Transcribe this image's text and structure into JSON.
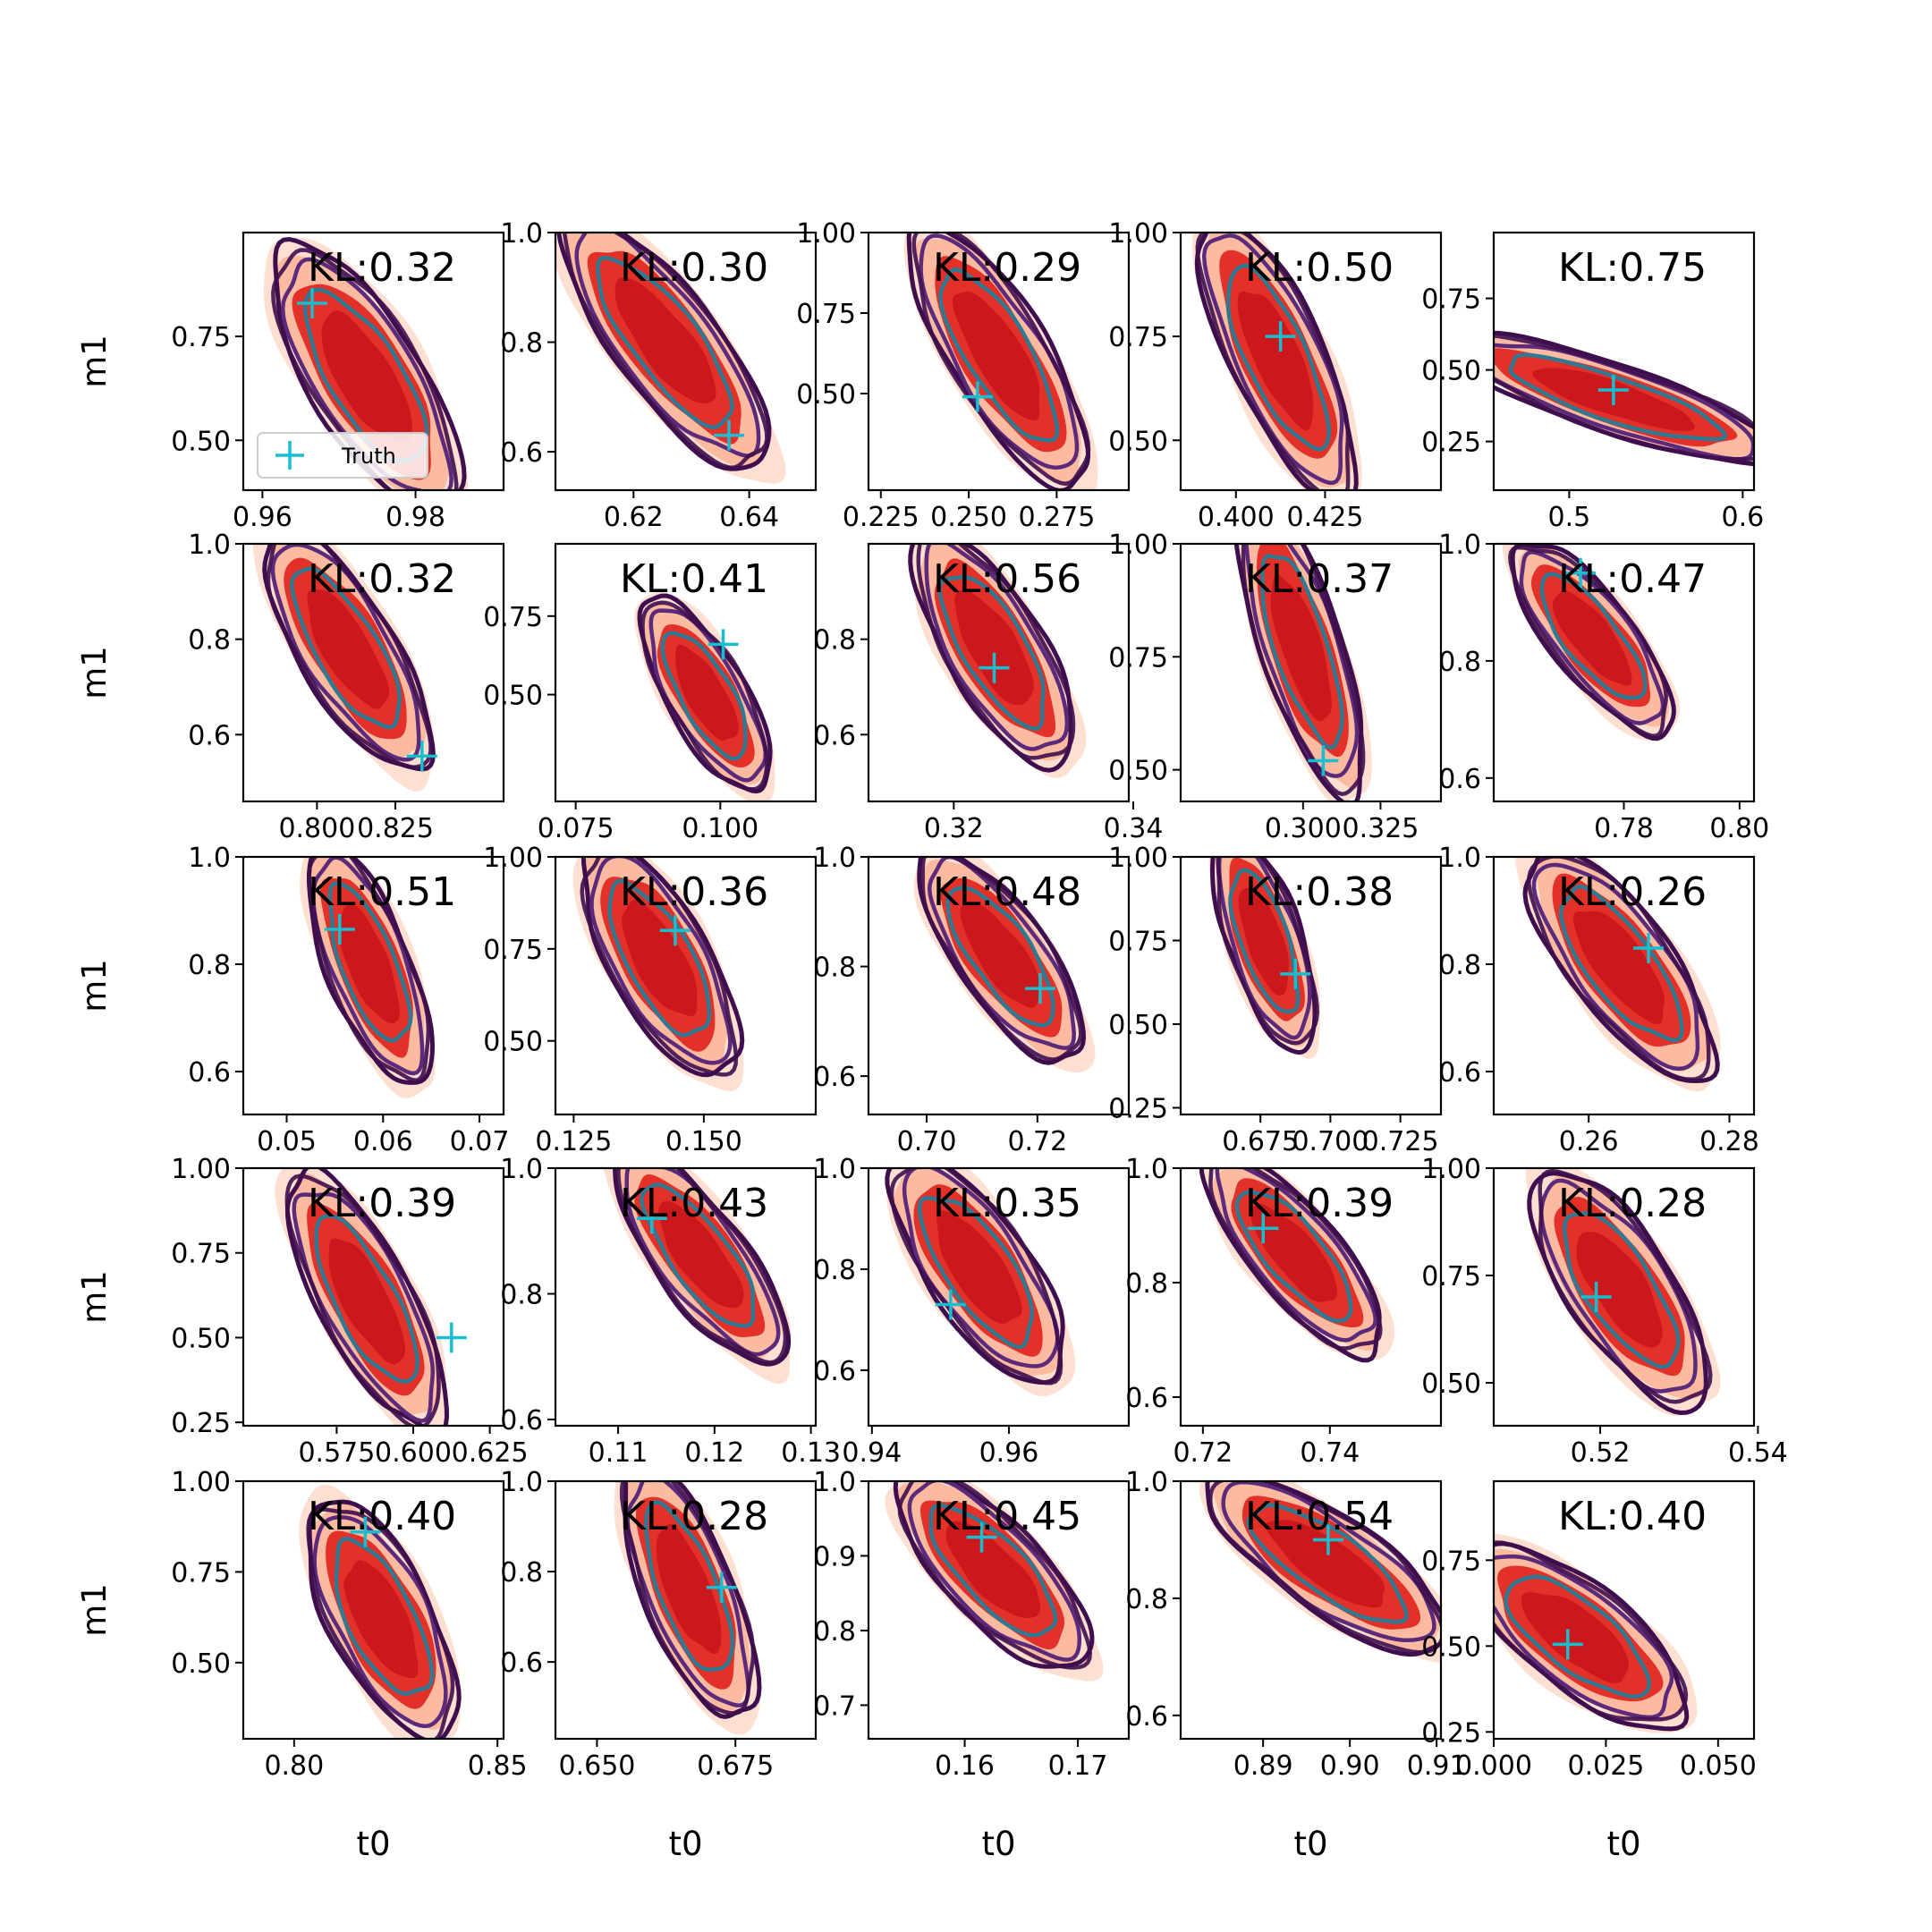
{
  "chart_data": {
    "type": "contour-grid",
    "xlabel": "t0",
    "ylabel": "m1",
    "legend": {
      "label": "Truth",
      "placement": "lower-left",
      "panel": 0
    },
    "colors": {
      "fill_outer": "#fde0d2",
      "fill_mid": "#fcbba1",
      "fill_inner": "#e3312a",
      "fill_core": "#cb181d",
      "contour_outer": "#3e0e4e",
      "contour_mid": "#5c2a7a",
      "contour_inner": "#2f7a92",
      "truth": "#17becf"
    },
    "panels": [
      {
        "kl": "KL:0.32",
        "xticks": [
          "0.96",
          "0.98"
        ],
        "xt": [
          0.96,
          0.98
        ],
        "xlim": [
          0.9575,
          0.9915
        ],
        "yticks": [
          "0.75",
          "0.50"
        ],
        "yt": [
          0.75,
          0.5
        ],
        "ylim": [
          0.38,
          1.0
        ],
        "truth": [
          0.9665,
          0.83
        ],
        "cx": 0.9735,
        "cy": 0.65,
        "hw": 0.0082,
        "hh": 0.31,
        "slant": -0.55,
        "vis": [
          1,
          1,
          1,
          1,
          1,
          1,
          1
        ]
      },
      {
        "kl": "KL:0.30",
        "xticks": [
          "0.62",
          "0.64"
        ],
        "xt": [
          0.62,
          0.64
        ],
        "xlim": [
          0.6065,
          0.6515
        ],
        "yticks": [
          "1.0",
          "0.8",
          "0.6"
        ],
        "yt": [
          1.0,
          0.8,
          0.6
        ],
        "ylim": [
          0.53,
          1.0
        ],
        "truth": [
          0.6365,
          0.63
        ],
        "cx": 0.6255,
        "cy": 0.8,
        "hw": 0.0105,
        "hh": 0.23,
        "slant": -0.7,
        "vis": [
          1,
          1,
          1,
          1,
          1,
          1,
          1
        ]
      },
      {
        "kl": "KL:0.29",
        "xticks": [
          "0.225",
          "0.250",
          "0.275"
        ],
        "xt": [
          0.225,
          0.25,
          0.275
        ],
        "xlim": [
          0.2215,
          0.2955
        ],
        "yticks": [
          "1.00",
          "0.75",
          "0.50"
        ],
        "yt": [
          1.0,
          0.75,
          0.5
        ],
        "ylim": [
          0.2,
          1.0
        ],
        "truth": [
          0.2525,
          0.49
        ],
        "cx": 0.2585,
        "cy": 0.62,
        "hw": 0.0155,
        "hh": 0.4,
        "slant": -0.65,
        "vis": [
          1,
          1,
          1,
          1,
          1,
          1,
          1
        ]
      },
      {
        "kl": "KL:0.50",
        "xticks": [
          "0.400",
          "0.425"
        ],
        "xt": [
          0.4,
          0.425
        ],
        "xlim": [
          0.3845,
          0.4575
        ],
        "yticks": [
          "1.00",
          "0.75",
          "0.50"
        ],
        "yt": [
          1.0,
          0.75,
          0.5
        ],
        "ylim": [
          0.38,
          1.0
        ],
        "truth": [
          0.4125,
          0.75
        ],
        "cx": 0.4115,
        "cy": 0.7,
        "hw": 0.014,
        "hh": 0.33,
        "slant": -0.6,
        "vis": [
          1,
          1,
          1,
          1,
          1,
          1,
          1
        ]
      },
      {
        "kl": "KL:0.75",
        "xticks": [
          "0.5",
          "0.6"
        ],
        "xt": [
          0.5,
          0.6
        ],
        "xlim": [
          0.4565,
          0.6065
        ],
        "yticks": [
          "0.75",
          "0.50",
          "0.25"
        ],
        "yt": [
          0.75,
          0.5,
          0.25
        ],
        "ylim": [
          0.08,
          0.98
        ],
        "truth": [
          0.5255,
          0.43
        ],
        "cx": 0.5255,
        "cy": 0.4,
        "hw": 0.052,
        "hh": 0.22,
        "slant": -0.78,
        "vis": [
          0,
          1,
          1,
          1,
          1,
          1,
          1
        ]
      },
      {
        "kl": "KL:0.32",
        "xticks": [
          "0.800",
          "0.825"
        ],
        "xt": [
          0.8,
          0.825
        ],
        "xlim": [
          0.7765,
          0.8595
        ],
        "yticks": [
          "1.0",
          "0.8",
          "0.6"
        ],
        "yt": [
          1.0,
          0.8,
          0.6
        ],
        "ylim": [
          0.46,
          1.0
        ],
        "truth": [
          0.8335,
          0.555
        ],
        "cx": 0.8095,
        "cy": 0.78,
        "hw": 0.017,
        "hh": 0.25,
        "slant": -0.6,
        "vis": [
          1,
          1,
          1,
          1,
          1,
          1,
          1
        ]
      },
      {
        "kl": "KL:0.41",
        "xticks": [
          "0.075",
          "0.100"
        ],
        "xt": [
          0.075,
          0.1
        ],
        "xlim": [
          0.0715,
          0.1165
        ],
        "yticks": [
          "0.75",
          "0.50"
        ],
        "yt": [
          0.75,
          0.5
        ],
        "ylim": [
          0.16,
          0.98
        ],
        "truth": [
          0.1005,
          0.66
        ],
        "cx": 0.0975,
        "cy": 0.5,
        "hw": 0.0075,
        "hh": 0.3,
        "slant": -0.55,
        "vis": [
          1,
          1,
          1,
          1,
          1,
          1,
          1
        ]
      },
      {
        "kl": "KL:0.56",
        "xticks": [
          "0.32",
          "0.34"
        ],
        "xt": [
          0.32,
          0.34
        ],
        "xlim": [
          0.3105,
          0.3395
        ],
        "yticks": [
          "0.8",
          "0.6"
        ],
        "yt": [
          0.8,
          0.6
        ],
        "ylim": [
          0.46,
          1.0
        ],
        "truth": [
          0.3245,
          0.74
        ],
        "cx": 0.3245,
        "cy": 0.78,
        "hw": 0.006,
        "hh": 0.24,
        "slant": -0.55,
        "vis": [
          1,
          1,
          1,
          1,
          1,
          1,
          1
        ]
      },
      {
        "kl": "KL:0.37",
        "xticks": [
          "0.300",
          "0.325"
        ],
        "xt": [
          0.3,
          0.325
        ],
        "xlim": [
          0.2605,
          0.3445
        ],
        "yticks": [
          "1.00",
          "0.75",
          "0.50"
        ],
        "yt": [
          1.0,
          0.75,
          0.5
        ],
        "ylim": [
          0.43,
          1.0
        ],
        "truth": [
          0.3065,
          0.52
        ],
        "cx": 0.2995,
        "cy": 0.77,
        "hw": 0.0135,
        "hh": 0.32,
        "slant": -0.55,
        "vis": [
          1,
          1,
          1,
          1,
          1,
          1,
          1
        ]
      },
      {
        "kl": "KL:0.47",
        "xticks": [
          "0.78",
          "0.80"
        ],
        "xt": [
          0.78,
          0.8
        ],
        "xlim": [
          0.7575,
          0.8025
        ],
        "yticks": [
          "1.0",
          "0.8",
          "0.6"
        ],
        "yt": [
          1.0,
          0.8,
          0.6
        ],
        "ylim": [
          0.56,
          1.0
        ],
        "truth": [
          0.7725,
          0.95
        ],
        "cx": 0.7745,
        "cy": 0.84,
        "hw": 0.0085,
        "hh": 0.16,
        "slant": -0.65,
        "vis": [
          1,
          1,
          1,
          1,
          1,
          1,
          1
        ]
      },
      {
        "kl": "KL:0.51",
        "xticks": [
          "0.05",
          "0.06",
          "0.07"
        ],
        "xt": [
          0.05,
          0.06,
          0.07
        ],
        "xlim": [
          0.0455,
          0.0725
        ],
        "yticks": [
          "1.0",
          "0.8",
          "0.6"
        ],
        "yt": [
          1.0,
          0.8,
          0.6
        ],
        "ylim": [
          0.52,
          1.0
        ],
        "truth": [
          0.0555,
          0.865
        ],
        "cx": 0.0585,
        "cy": 0.8,
        "hw": 0.0045,
        "hh": 0.22,
        "slant": -0.5,
        "vis": [
          1,
          1,
          1,
          1,
          1,
          1,
          1
        ]
      },
      {
        "kl": "KL:0.36",
        "xticks": [
          "0.125",
          "0.150"
        ],
        "xt": [
          0.125,
          0.15
        ],
        "xlim": [
          0.1215,
          0.1715
        ],
        "yticks": [
          "1.00",
          "0.75",
          "0.50"
        ],
        "yt": [
          1.0,
          0.75,
          0.5
        ],
        "ylim": [
          0.3,
          1.0
        ],
        "truth": [
          0.1445,
          0.8
        ],
        "cx": 0.1415,
        "cy": 0.72,
        "hw": 0.0105,
        "hh": 0.31,
        "slant": -0.5,
        "vis": [
          1,
          1,
          1,
          1,
          1,
          1,
          1
        ]
      },
      {
        "kl": "KL:0.48",
        "xticks": [
          "0.70",
          "0.72"
        ],
        "xt": [
          0.7,
          0.72
        ],
        "xlim": [
          0.6895,
          0.7365
        ],
        "yticks": [
          "1.0",
          "0.8",
          "0.6"
        ],
        "yt": [
          1.0,
          0.8,
          0.6
        ],
        "ylim": [
          0.53,
          1.0
        ],
        "truth": [
          0.7205,
          0.76
        ],
        "cx": 0.7135,
        "cy": 0.82,
        "hw": 0.0095,
        "hh": 0.19,
        "slant": -0.6,
        "vis": [
          1,
          1,
          1,
          1,
          1,
          1,
          1
        ]
      },
      {
        "kl": "KL:0.38",
        "xticks": [
          "0.675",
          "0.700",
          "0.725"
        ],
        "xt": [
          0.675,
          0.7,
          0.725
        ],
        "xlim": [
          0.6465,
          0.7395
        ],
        "yticks": [
          "1.00",
          "0.75",
          "0.50",
          "0.25"
        ],
        "yt": [
          1.0,
          0.75,
          0.5,
          0.25
        ],
        "ylim": [
          0.23,
          1.0
        ],
        "truth": [
          0.6875,
          0.65
        ],
        "cx": 0.6765,
        "cy": 0.75,
        "hw": 0.0135,
        "hh": 0.32,
        "slant": -0.45,
        "vis": [
          1,
          1,
          1,
          1,
          1,
          1,
          1
        ]
      },
      {
        "kl": "KL:0.26",
        "xticks": [
          "0.26",
          "0.28"
        ],
        "xt": [
          0.26,
          0.28
        ],
        "xlim": [
          0.2465,
          0.2835
        ],
        "yticks": [
          "1.0",
          "0.8",
          "0.6"
        ],
        "yt": [
          1.0,
          0.8,
          0.6
        ],
        "ylim": [
          0.52,
          1.0
        ],
        "truth": [
          0.2685,
          0.83
        ],
        "cx": 0.2645,
        "cy": 0.8,
        "hw": 0.0085,
        "hh": 0.21,
        "slant": -0.6,
        "vis": [
          1,
          1,
          1,
          1,
          1,
          1,
          1
        ]
      },
      {
        "kl": "KL:0.39",
        "xticks": [
          "0.575",
          "0.600",
          "0.625"
        ],
        "xt": [
          0.575,
          0.6,
          0.625
        ],
        "xlim": [
          0.5445,
          0.6295
        ],
        "yticks": [
          "1.00",
          "0.75",
          "0.50",
          "0.25"
        ],
        "yt": [
          1.0,
          0.75,
          0.5,
          0.25
        ],
        "ylim": [
          0.24,
          1.0
        ],
        "truth": [
          0.6125,
          0.5
        ],
        "cx": 0.5845,
        "cy": 0.61,
        "hw": 0.0165,
        "hh": 0.37,
        "slant": -0.6,
        "vis": [
          1,
          1,
          1,
          1,
          1,
          1,
          1
        ]
      },
      {
        "kl": "KL:0.43",
        "xticks": [
          "0.11",
          "0.12",
          "0.13"
        ],
        "xt": [
          0.11,
          0.12,
          0.13
        ],
        "xlim": [
          0.1035,
          0.1305
        ],
        "yticks": [
          "1.0",
          "0.8",
          "0.6"
        ],
        "yt": [
          1.0,
          0.8,
          0.6
        ],
        "ylim": [
          0.59,
          1.0
        ],
        "truth": [
          0.1135,
          0.92
        ],
        "cx": 0.1185,
        "cy": 0.86,
        "hw": 0.0055,
        "hh": 0.17,
        "slant": -0.65,
        "vis": [
          1,
          1,
          1,
          1,
          1,
          1,
          1
        ]
      },
      {
        "kl": "KL:0.35",
        "xticks": [
          "0.94",
          "0.96"
        ],
        "xt": [
          0.94,
          0.96
        ],
        "xlim": [
          0.9395,
          0.9775
        ],
        "yticks": [
          "1.0",
          "0.8",
          "0.6"
        ],
        "yt": [
          1.0,
          0.8,
          0.6
        ],
        "ylim": [
          0.49,
          1.0
        ],
        "truth": [
          0.9515,
          0.73
        ],
        "cx": 0.9555,
        "cy": 0.8,
        "hw": 0.0085,
        "hh": 0.22,
        "slant": -0.55,
        "vis": [
          1,
          1,
          1,
          1,
          1,
          1,
          1
        ]
      },
      {
        "kl": "KL:0.39",
        "xticks": [
          "0.72",
          "0.74"
        ],
        "xt": [
          0.72,
          0.74
        ],
        "xlim": [
          0.7165,
          0.7575
        ],
        "yticks": [
          "1.0",
          "0.8",
          "0.6"
        ],
        "yt": [
          1.0,
          0.8,
          0.6
        ],
        "ylim": [
          0.55,
          1.0
        ],
        "truth": [
          0.7295,
          0.895
        ],
        "cx": 0.7345,
        "cy": 0.85,
        "hw": 0.0085,
        "hh": 0.17,
        "slant": -0.65,
        "vis": [
          1,
          1,
          1,
          1,
          1,
          1,
          1
        ]
      },
      {
        "kl": "KL:0.28",
        "xticks": [
          "0.52",
          "0.54"
        ],
        "xt": [
          0.52,
          0.54
        ],
        "xlim": [
          0.5065,
          0.5395
        ],
        "yticks": [
          "1.00",
          "0.75",
          "0.50"
        ],
        "yt": [
          1.0,
          0.75,
          0.5
        ],
        "ylim": [
          0.4,
          1.0
        ],
        "truth": [
          0.5195,
          0.7
        ],
        "cx": 0.5225,
        "cy": 0.72,
        "hw": 0.0075,
        "hh": 0.27,
        "slant": -0.55,
        "vis": [
          1,
          1,
          1,
          1,
          1,
          1,
          1
        ]
      },
      {
        "kl": "KL:0.40",
        "xticks": [
          "0.80",
          "0.85"
        ],
        "xt": [
          0.8,
          0.85
        ],
        "xlim": [
          0.7875,
          0.8515
        ],
        "yticks": [
          "1.00",
          "0.75",
          "0.50"
        ],
        "yt": [
          1.0,
          0.75,
          0.5
        ],
        "ylim": [
          0.29,
          1.0
        ],
        "truth": [
          0.8175,
          0.86
        ],
        "cx": 0.8215,
        "cy": 0.62,
        "hw": 0.0135,
        "hh": 0.32,
        "slant": -0.45,
        "vis": [
          1,
          1,
          1,
          1,
          1,
          1,
          1
        ]
      },
      {
        "kl": "KL:0.28",
        "xticks": [
          "0.650",
          "0.675"
        ],
        "xt": [
          0.65,
          0.675
        ],
        "xlim": [
          0.6425,
          0.6895
        ],
        "yticks": [
          "1.0",
          "0.8",
          "0.6"
        ],
        "yt": [
          1.0,
          0.8,
          0.6
        ],
        "ylim": [
          0.43,
          1.0
        ],
        "truth": [
          0.6725,
          0.765
        ],
        "cx": 0.6665,
        "cy": 0.76,
        "hw": 0.0085,
        "hh": 0.28,
        "slant": -0.5,
        "vis": [
          1,
          1,
          1,
          1,
          1,
          1,
          1
        ]
      },
      {
        "kl": "KL:0.45",
        "xticks": [
          "0.16",
          "0.17"
        ],
        "xt": [
          0.16,
          0.17
        ],
        "xlim": [
          0.1515,
          0.1745
        ],
        "yticks": [
          "1.0",
          "0.9",
          "0.8",
          "0.7"
        ],
        "yt": [
          1.0,
          0.9,
          0.8,
          0.7
        ],
        "ylim": [
          0.655,
          1.0
        ],
        "truth": [
          0.1615,
          0.925
        ],
        "cx": 0.1625,
        "cy": 0.88,
        "hw": 0.0055,
        "hh": 0.13,
        "slant": -0.6,
        "vis": [
          1,
          1,
          1,
          1,
          1,
          1,
          1
        ]
      },
      {
        "kl": "KL:0.54",
        "xticks": [
          "0.89",
          "0.90",
          "0.91"
        ],
        "xt": [
          0.89,
          0.9,
          0.91
        ],
        "xlim": [
          0.8805,
          0.9105
        ],
        "yticks": [
          "1.0",
          "0.8",
          "0.6"
        ],
        "yt": [
          1.0,
          0.8,
          0.6
        ],
        "ylim": [
          0.56,
          1.0
        ],
        "truth": [
          0.8975,
          0.9
        ],
        "cx": 0.8975,
        "cy": 0.86,
        "hw": 0.0085,
        "hh": 0.15,
        "slant": -0.65,
        "vis": [
          1,
          1,
          1,
          1,
          1,
          1,
          1
        ]
      },
      {
        "kl": "KL:0.40",
        "xticks": [
          "0.000",
          "0.025",
          "0.050"
        ],
        "xt": [
          0.0,
          0.025,
          0.05
        ],
        "xlim": [
          0.0,
          0.058
        ],
        "yticks": [
          "0.75",
          "0.50",
          "0.25"
        ],
        "yt": [
          0.75,
          0.5,
          0.25
        ],
        "ylim": [
          0.23,
          0.98
        ],
        "truth": [
          0.0165,
          0.505
        ],
        "cx": 0.0185,
        "cy": 0.53,
        "hw": 0.0165,
        "hh": 0.26,
        "slant": -0.55,
        "vis": [
          1,
          1,
          1,
          1,
          1,
          1,
          1
        ]
      }
    ]
  }
}
